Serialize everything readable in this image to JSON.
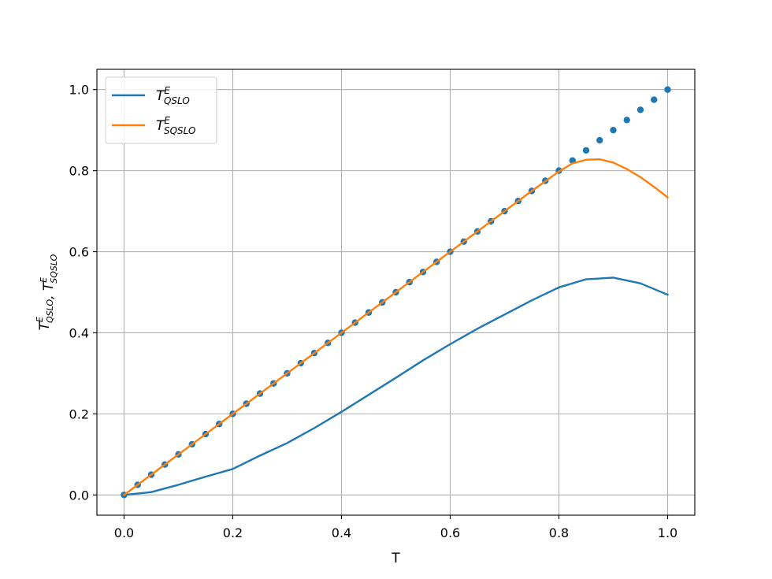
{
  "chart_data": {
    "type": "line",
    "title": "",
    "xlabel": "T",
    "ylabel": "T^E_{QSLO}, T^E_{SQSLO}",
    "ylabel_parts": [
      {
        "main": "T",
        "sup": "E",
        "sub": "QSLO"
      },
      {
        "main": ", T",
        "sup": "E",
        "sub": "SQSLO"
      }
    ],
    "xlim": [
      -0.05,
      1.05
    ],
    "ylim": [
      -0.05,
      1.05
    ],
    "xticks": [
      0.0,
      0.2,
      0.4,
      0.6,
      0.8,
      1.0
    ],
    "yticks": [
      0.0,
      0.2,
      0.4,
      0.6,
      0.8,
      1.0
    ],
    "xtick_labels": [
      "0.0",
      "0.2",
      "0.4",
      "0.6",
      "0.8",
      "1.0"
    ],
    "ytick_labels": [
      "0.0",
      "0.2",
      "0.4",
      "0.6",
      "0.8",
      "1.0"
    ],
    "grid": true,
    "legend_position": "top-left",
    "series": [
      {
        "name": "T^E_{QSLO}",
        "label_parts": {
          "main": "T",
          "sup": "E",
          "sub": "QSLO"
        },
        "style": "line",
        "color": "#1f77b4",
        "x": [
          0.0,
          0.05,
          0.1,
          0.15,
          0.2,
          0.25,
          0.3,
          0.35,
          0.4,
          0.45,
          0.5,
          0.55,
          0.6,
          0.65,
          0.7,
          0.75,
          0.8,
          0.85,
          0.9,
          0.95,
          1.0
        ],
        "y": [
          0.0,
          0.007,
          0.025,
          0.045,
          0.064,
          0.097,
          0.128,
          0.165,
          0.205,
          0.247,
          0.289,
          0.332,
          0.372,
          0.41,
          0.445,
          0.48,
          0.512,
          0.532,
          0.536,
          0.522,
          0.494
        ]
      },
      {
        "name": "T^E_{SQSLO}",
        "label_parts": {
          "main": "T",
          "sup": "E",
          "sub": "SQSLO"
        },
        "style": "line",
        "color": "#ff7f0e",
        "x": [
          0.0,
          0.1,
          0.2,
          0.3,
          0.4,
          0.5,
          0.6,
          0.7,
          0.75,
          0.8,
          0.825,
          0.85,
          0.875,
          0.9,
          0.925,
          0.95,
          0.975,
          1.0
        ],
        "y": [
          0.0,
          0.1,
          0.2,
          0.3,
          0.4,
          0.5,
          0.6,
          0.7,
          0.75,
          0.798,
          0.818,
          0.827,
          0.828,
          0.82,
          0.804,
          0.784,
          0.76,
          0.734
        ]
      },
      {
        "name": "",
        "style": "scatter",
        "color": "#1f77b4",
        "x": [
          0.0,
          0.025,
          0.05,
          0.075,
          0.1,
          0.125,
          0.15,
          0.175,
          0.2,
          0.225,
          0.25,
          0.275,
          0.3,
          0.325,
          0.35,
          0.375,
          0.4,
          0.425,
          0.45,
          0.475,
          0.5,
          0.525,
          0.55,
          0.575,
          0.6,
          0.625,
          0.65,
          0.675,
          0.7,
          0.725,
          0.75,
          0.775,
          0.8,
          0.825,
          0.85,
          0.875,
          0.9,
          0.925,
          0.95,
          0.975,
          1.0
        ],
        "y": [
          0.0,
          0.025,
          0.05,
          0.075,
          0.1,
          0.125,
          0.15,
          0.175,
          0.2,
          0.225,
          0.25,
          0.275,
          0.3,
          0.325,
          0.35,
          0.375,
          0.4,
          0.425,
          0.45,
          0.475,
          0.5,
          0.525,
          0.55,
          0.575,
          0.6,
          0.625,
          0.65,
          0.675,
          0.7,
          0.725,
          0.75,
          0.775,
          0.8,
          0.825,
          0.85,
          0.875,
          0.9,
          0.925,
          0.95,
          0.975,
          1.0
        ]
      }
    ]
  }
}
